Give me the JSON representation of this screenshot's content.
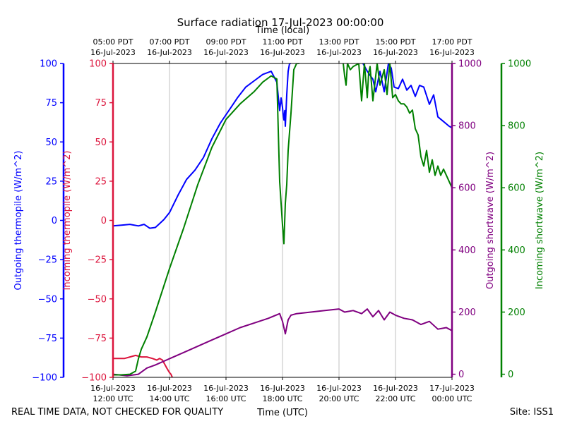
{
  "chart_data": {
    "type": "line",
    "title": "Surface radiation 17-Jul-2023 00:00:00",
    "top_axis_title": "Time (local)",
    "xlabel": "Time (UTC)",
    "footer_left": "REAL TIME DATA, NOT CHECKED FOR QUALITY",
    "footer_right": "Site: ISS1",
    "x_ticks": [
      {
        "utc": [
          "16-Jul-2023",
          "12:00 UTC"
        ],
        "local": [
          "05:00 PDT",
          "16-Jul-2023"
        ],
        "grid": false
      },
      {
        "utc": [
          "16-Jul-2023",
          "14:00 UTC"
        ],
        "local": [
          "07:00 PDT",
          "16-Jul-2023"
        ],
        "grid": true
      },
      {
        "utc": [
          "16-Jul-2023",
          "16:00 UTC"
        ],
        "local": [
          "09:00 PDT",
          "16-Jul-2023"
        ],
        "grid": true
      },
      {
        "utc": [
          "16-Jul-2023",
          "18:00 UTC"
        ],
        "local": [
          "11:00 PDT",
          "16-Jul-2023"
        ],
        "grid": true
      },
      {
        "utc": [
          "16-Jul-2023",
          "20:00 UTC"
        ],
        "local": [
          "13:00 PDT",
          "16-Jul-2023"
        ],
        "grid": true
      },
      {
        "utc": [
          "16-Jul-2023",
          "22:00 UTC"
        ],
        "local": [
          "15:00 PDT",
          "16-Jul-2023"
        ],
        "grid": true
      },
      {
        "utc": [
          "17-Jul-2023",
          "00:00 UTC"
        ],
        "local": [
          "17:00 PDT",
          "16-Jul-2023"
        ],
        "grid": false
      }
    ],
    "axes": [
      {
        "id": "outgoing-thermopile",
        "label": "Outgoing thermopile (W/m^2)",
        "color": "#0000ff",
        "range": [
          -100,
          100
        ],
        "ticks": [
          -100,
          -75,
          -50,
          -25,
          0,
          25,
          50,
          75,
          100
        ]
      },
      {
        "id": "incoming-thermopile",
        "label": "Incoming thermopile (W/m^2)",
        "color": "#dc143c",
        "range": [
          -100,
          100
        ],
        "ticks": [
          -100,
          -75,
          -50,
          -25,
          0,
          25,
          50,
          75,
          100
        ]
      },
      {
        "id": "outgoing-shortwave",
        "label": "Outgoing shortwave (W/m^2)",
        "color": "#800080",
        "range": [
          -10,
          1000
        ],
        "ticks": [
          0,
          200,
          400,
          600,
          800,
          1000
        ]
      },
      {
        "id": "incoming-shortwave",
        "label": "Incoming shortwave (W/m^2)",
        "color": "#008000",
        "range": [
          -10,
          1000
        ],
        "ticks": [
          0,
          200,
          400,
          600,
          800,
          1000
        ]
      }
    ],
    "series": [
      {
        "axis": "outgoing-thermopile",
        "color": "#0000ff",
        "x": [
          0,
          0.3,
          0.6,
          0.9,
          1.1,
          1.3,
          1.5,
          1.65,
          1.8,
          2.0,
          2.3,
          2.6,
          2.9,
          3.2,
          3.5,
          3.8,
          4.1,
          4.4,
          4.7,
          5.0,
          5.3,
          5.6,
          5.8,
          5.9,
          5.95,
          6.0,
          6.02,
          6.05,
          6.08,
          6.1,
          6.15,
          6.2,
          6.25,
          6.3
        ],
        "y": [
          -3.5,
          -3,
          -2.5,
          -3.5,
          -2.5,
          -5,
          -4.5,
          -2,
          0.5,
          5,
          16,
          26,
          32,
          40,
          52,
          62,
          70,
          78,
          85,
          89,
          93,
          95,
          88,
          70,
          78,
          72,
          68,
          64,
          70,
          60,
          80,
          95,
          100,
          100
        ]
      },
      {
        "axis": "outgoing-thermopile",
        "color": "#0000ff",
        "x": [
          8.85,
          9.0,
          9.2,
          9.3,
          9.45,
          9.6,
          9.75,
          9.85,
          9.95,
          10.1,
          10.25,
          10.4,
          10.55,
          10.7,
          10.85,
          11.0,
          11.2,
          11.35,
          11.5,
          11.7,
          11.9,
          12.0
        ],
        "y": [
          100,
          95,
          90,
          82,
          95,
          82,
          100,
          97,
          85,
          84,
          90,
          83,
          86,
          79,
          86,
          85,
          74,
          80,
          66,
          63,
          60,
          59
        ]
      },
      {
        "axis": "incoming-thermopile",
        "color": "#dc143c",
        "x": [
          0,
          0.2,
          0.4,
          0.6,
          0.8,
          1.0,
          1.2,
          1.4,
          1.55,
          1.65,
          1.75,
          1.9,
          2.0,
          2.05,
          2.1
        ],
        "y": [
          -88,
          -88,
          -88,
          -87,
          -86,
          -87,
          -87,
          -88,
          -89,
          -88,
          -89,
          -94,
          -97,
          -98,
          -100
        ]
      },
      {
        "axis": "outgoing-shortwave",
        "color": "#800080",
        "x": [
          0,
          0.5,
          0.9,
          1.2,
          1.5,
          2.0,
          2.5,
          3.0,
          3.5,
          4.0,
          4.5,
          5.0,
          5.5,
          5.9,
          6.0,
          6.05,
          6.1,
          6.2,
          6.3,
          6.5,
          7.0,
          7.5,
          8.0,
          8.2,
          8.5,
          8.8,
          9.0,
          9.2,
          9.4,
          9.6,
          9.8,
          10.0,
          10.3,
          10.6,
          10.9,
          11.2,
          11.5,
          11.8,
          12.0
        ],
        "y": [
          0,
          -5,
          0,
          20,
          30,
          50,
          70,
          90,
          110,
          130,
          150,
          165,
          180,
          195,
          170,
          150,
          130,
          175,
          190,
          195,
          200,
          205,
          210,
          200,
          205,
          195,
          210,
          185,
          205,
          175,
          200,
          190,
          180,
          175,
          160,
          170,
          145,
          150,
          140
        ]
      },
      {
        "axis": "incoming-shortwave",
        "color": "#008000",
        "x": [
          0,
          0.3,
          0.6,
          0.8,
          0.9,
          1.0,
          1.2,
          1.5,
          2.0,
          2.5,
          3.0,
          3.5,
          4.0,
          4.5,
          5.0,
          5.3,
          5.6,
          5.8,
          5.9,
          6.0,
          6.05,
          6.1,
          6.15,
          6.2,
          6.3,
          6.4,
          6.5,
          6.6
        ],
        "y": [
          -2,
          -2,
          0,
          10,
          50,
          80,
          120,
          200,
          340,
          470,
          610,
          730,
          820,
          870,
          910,
          940,
          960,
          950,
          620,
          480,
          420,
          550,
          610,
          720,
          840,
          980,
          1000,
          1000
        ]
      },
      {
        "axis": "incoming-shortwave",
        "color": "#008000",
        "x": [
          8.15,
          8.2,
          8.25,
          8.3,
          8.4,
          8.5,
          8.7,
          8.8,
          8.9,
          9.0,
          9.05,
          9.1,
          9.2,
          9.35,
          9.45,
          9.6,
          9.7,
          9.8,
          9.9,
          10.0,
          10.1,
          10.2,
          10.3,
          10.4,
          10.5,
          10.6,
          10.7,
          10.8,
          10.9,
          11.0,
          11.1,
          11.2,
          11.3,
          11.4,
          11.5,
          11.6,
          11.7,
          11.8,
          11.9,
          12.0
        ],
        "y": [
          1000,
          960,
          930,
          1000,
          980,
          990,
          1000,
          880,
          1000,
          890,
          970,
          990,
          880,
          1000,
          930,
          980,
          900,
          1000,
          890,
          900,
          880,
          870,
          870,
          860,
          840,
          850,
          790,
          770,
          700,
          670,
          720,
          650,
          690,
          640,
          670,
          640,
          660,
          640,
          620,
          600
        ]
      }
    ]
  }
}
